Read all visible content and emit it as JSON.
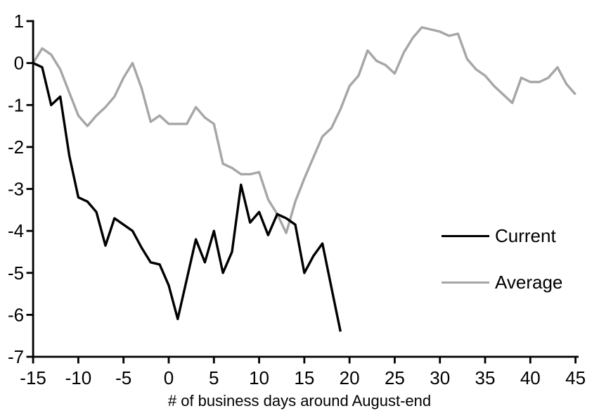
{
  "chart_data": {
    "type": "line",
    "title": "",
    "xlabel": "# of business days around August-end",
    "ylabel": "",
    "xlim": [
      -15,
      45
    ],
    "ylim": [
      -7,
      1
    ],
    "x_ticks": [
      -15,
      -10,
      -5,
      0,
      5,
      10,
      15,
      20,
      25,
      30,
      35,
      40,
      45
    ],
    "y_ticks": [
      1,
      0,
      -1,
      -2,
      -3,
      -4,
      -5,
      -6,
      -7
    ],
    "grid": false,
    "legend_position": "right-center",
    "series": [
      {
        "name": "Current",
        "color": "#000000",
        "x": [
          -15,
          -14,
          -13,
          -12,
          -11,
          -10,
          -9,
          -8,
          -7,
          -6,
          -5,
          -4,
          -3,
          -2,
          -1,
          0,
          1,
          2,
          3,
          4,
          5,
          6,
          7,
          8,
          9,
          10,
          11,
          12,
          13,
          14,
          15,
          16,
          17,
          18,
          19
        ],
        "values": [
          0,
          -0.1,
          -1,
          -0.8,
          -2.2,
          -3.2,
          -3.3,
          -3.55,
          -4.35,
          -3.7,
          -3.85,
          -4,
          -4.4,
          -4.75,
          -4.8,
          -5.3,
          -6.1,
          -5.15,
          -4.2,
          -4.75,
          -4,
          -5,
          -4.5,
          -2.9,
          -3.8,
          -3.55,
          -4.1,
          -3.6,
          -3.7,
          -3.85,
          -5,
          -4.6,
          -4.3,
          -5.35,
          -6.4
        ]
      },
      {
        "name": "Average",
        "color": "#a6a6a6",
        "x": [
          -15,
          -14,
          -13,
          -12,
          -11,
          -10,
          -9,
          -8,
          -7,
          -6,
          -5,
          -4,
          -3,
          -2,
          -1,
          0,
          1,
          2,
          3,
          4,
          5,
          6,
          7,
          8,
          9,
          10,
          11,
          12,
          13,
          14,
          15,
          16,
          17,
          18,
          19,
          20,
          21,
          22,
          23,
          24,
          25,
          26,
          27,
          28,
          29,
          30,
          31,
          32,
          33,
          34,
          35,
          36,
          37,
          38,
          39,
          40,
          41,
          42,
          43,
          44,
          45
        ],
        "values": [
          0,
          0.35,
          0.2,
          -0.15,
          -0.7,
          -1.25,
          -1.5,
          -1.25,
          -1.05,
          -0.8,
          -0.35,
          0,
          -0.6,
          -1.4,
          -1.25,
          -1.45,
          -1.45,
          -1.45,
          -1.05,
          -1.3,
          -1.45,
          -2.4,
          -2.5,
          -2.65,
          -2.65,
          -2.6,
          -3.25,
          -3.6,
          -4.05,
          -3.3,
          -2.75,
          -2.25,
          -1.75,
          -1.55,
          -1.1,
          -0.55,
          -0.3,
          0.3,
          0.05,
          -0.05,
          -0.25,
          0.25,
          0.6,
          0.85,
          0.8,
          0.75,
          0.65,
          0.7,
          0.1,
          -0.15,
          -0.3,
          -0.55,
          -0.75,
          -0.95,
          -0.35,
          -0.45,
          -0.45,
          -0.35,
          -0.1,
          -0.5,
          -0.75
        ]
      }
    ]
  },
  "legend": {
    "current_label": "Current",
    "average_label": "Average"
  },
  "colors": {
    "background": "#ffffff",
    "axis": "#000000",
    "current": "#000000",
    "average": "#a6a6a6"
  }
}
